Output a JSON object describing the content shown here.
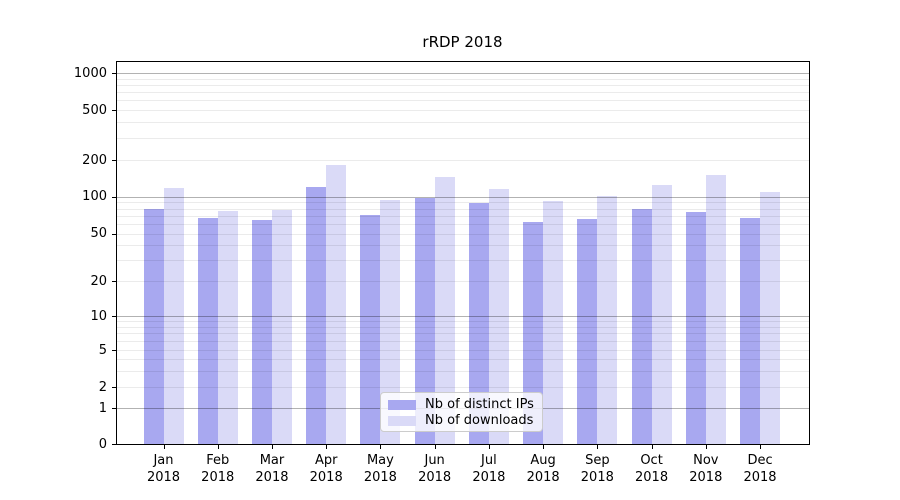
{
  "chart_data": {
    "type": "bar",
    "title": "rRDP 2018",
    "xlabel": "",
    "ylabel": "",
    "yscale": "symlog",
    "grid": true,
    "legend_position": "lower center",
    "categories": [
      "Jan",
      "Feb",
      "Mar",
      "Apr",
      "May",
      "Jun",
      "Jul",
      "Aug",
      "Sep",
      "Oct",
      "Nov",
      "Dec"
    ],
    "category_year": "2018",
    "yticks": [
      0,
      1,
      2,
      5,
      10,
      20,
      50,
      100,
      200,
      500,
      1000
    ],
    "ylim": [
      0,
      1260
    ],
    "series": [
      {
        "name": "Nb of distinct IPs",
        "color": "#a8a8f0",
        "values": [
          80,
          67,
          65,
          120,
          71,
          97,
          88,
          62,
          66,
          79,
          75,
          67
        ]
      },
      {
        "name": "Nb of downloads",
        "color": "#dadaf7",
        "values": [
          117,
          77,
          78,
          182,
          94,
          146,
          115,
          92,
          102,
          125,
          150,
          110
        ]
      }
    ]
  }
}
